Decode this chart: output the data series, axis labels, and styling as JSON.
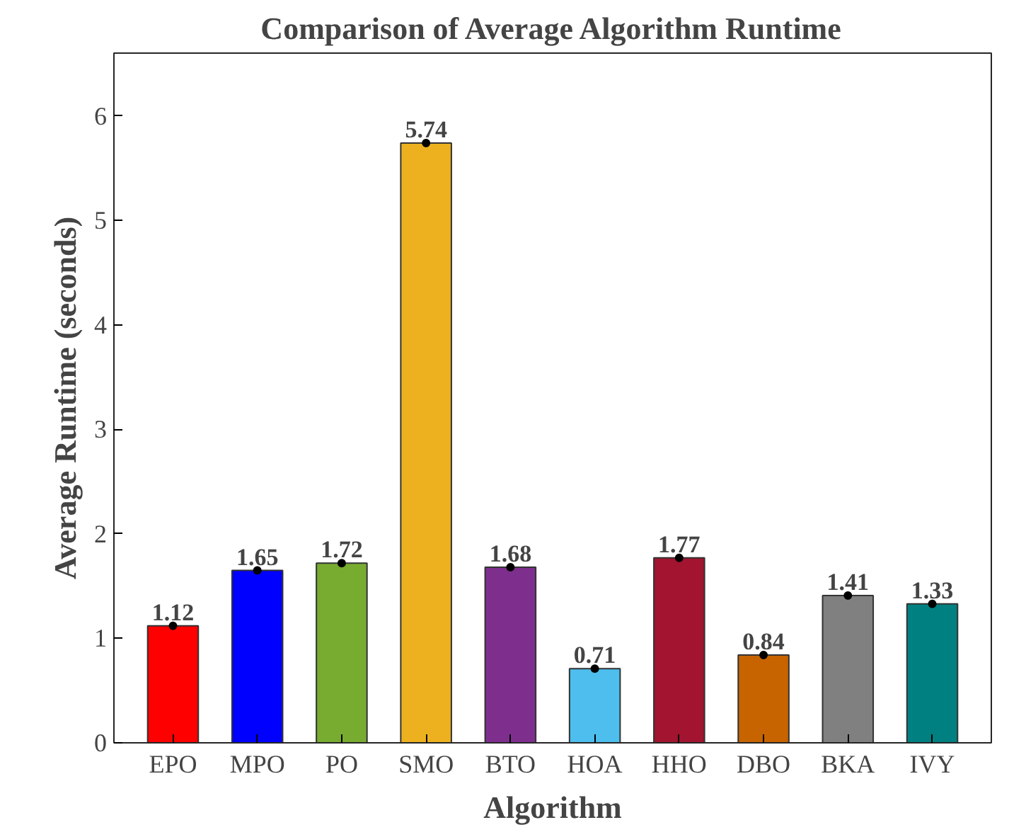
{
  "chart_data": {
    "type": "bar",
    "title": "Comparison of Average Algorithm Runtime",
    "xlabel": "Algorithm",
    "ylabel": "Average Runtime (seconds)",
    "categories": [
      "EPO",
      "MPO",
      "PO",
      "SMO",
      "BTO",
      "HOA",
      "HHO",
      "DBO",
      "BKA",
      "IVY"
    ],
    "ylim": [
      0,
      6.6
    ],
    "yticks": [
      0,
      1,
      2,
      3,
      4,
      5,
      6
    ],
    "grid": false,
    "data_labels": true,
    "series": [
      {
        "values": [
          1.12,
          1.65,
          1.72,
          5.74,
          1.68,
          0.71,
          1.77,
          0.84,
          1.41,
          1.33
        ],
        "colors": [
          "#ff0000",
          "#0000ff",
          "#77ac30",
          "#edb120",
          "#7e2f8e",
          "#4dbeee",
          "#a2142f",
          "#c86400",
          "#808080",
          "#008080"
        ]
      },
      {
        "type": "scatter",
        "marker": "circle",
        "color": "#000000",
        "x": [
          "EPO",
          "MPO",
          "PO",
          "SMO",
          "BTO",
          "HOA",
          "HHO",
          "DBO",
          "BKA",
          "IVY"
        ],
        "values": [
          1.12,
          1.65,
          1.72,
          5.74,
          1.68,
          0.71,
          1.77,
          0.84,
          1.41,
          1.33
        ],
        "value_labels": [
          null,
          null,
          null,
          null,
          null,
          null,
          null,
          null,
          null,
          null
        ]
      }
    ]
  }
}
